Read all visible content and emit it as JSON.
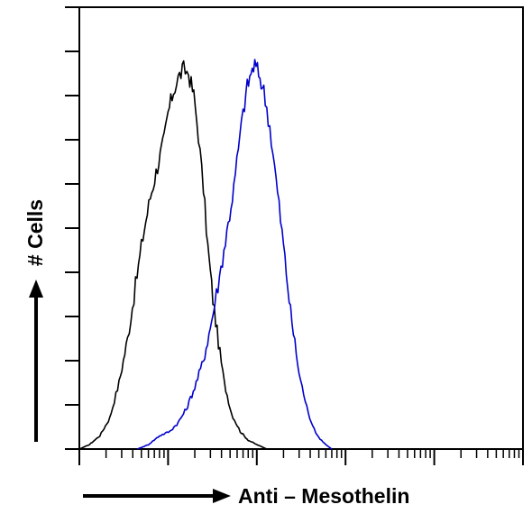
{
  "chart_data": {
    "type": "line",
    "title": "",
    "xlabel": "Anti – Mesothelin",
    "ylabel": "# Cells",
    "x_scale": "log",
    "xlim": [
      1,
      100000
    ],
    "ylim": [
      0,
      100
    ],
    "grid": false,
    "legend": "none",
    "y_major_ticks": [
      0,
      10,
      20,
      30,
      40,
      50,
      60,
      70,
      80,
      90,
      100
    ],
    "series": [
      {
        "color": "#000000",
        "x": [
          1,
          1.3,
          1.7,
          2.2,
          2.8,
          3.5,
          4.3,
          5.2,
          6.3,
          7.6,
          9,
          10,
          11.5,
          13,
          15,
          17,
          19.5,
          22,
          25,
          28,
          32,
          37,
          43,
          52,
          65,
          80,
          100,
          130
        ],
        "y": [
          0,
          1,
          3,
          7,
          15,
          25,
          37,
          48,
          57,
          64,
          70,
          76,
          81,
          84,
          86,
          85,
          80,
          71,
          59,
          46,
          34,
          24,
          15,
          8,
          4,
          2,
          1,
          0
        ]
      },
      {
        "color": "#0000cc",
        "x": [
          4.5,
          6,
          8,
          10.5,
          13,
          16,
          20,
          25,
          31,
          38,
          46,
          55,
          62,
          70,
          78,
          86,
          95,
          105,
          120,
          140,
          165,
          200,
          240,
          300,
          380,
          480,
          600,
          700
        ],
        "y": [
          0,
          1,
          3,
          4,
          6,
          9,
          14,
          20,
          29,
          39,
          49,
          59,
          68,
          76,
          82,
          85,
          87,
          85,
          81,
          73,
          61,
          46,
          31,
          17,
          8,
          3,
          1,
          0
        ]
      }
    ]
  }
}
